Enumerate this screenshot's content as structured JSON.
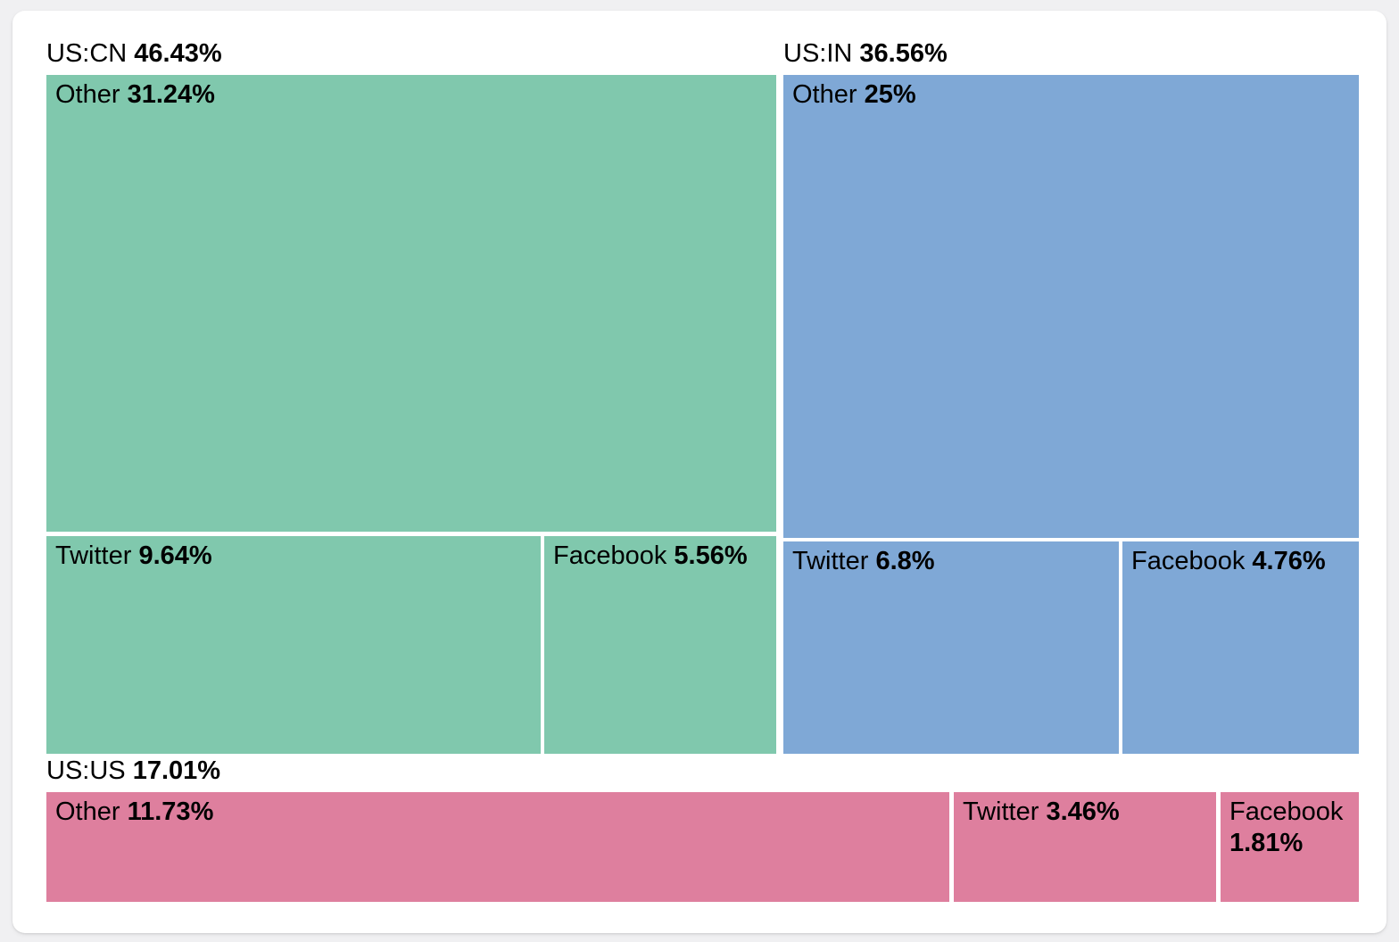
{
  "chart_data": {
    "type": "treemap",
    "unit": "%",
    "legend_position": "none",
    "colors": {
      "us_cn": "#80c8ad",
      "us_in": "#7fa8d6",
      "us_us": "#de7f9e",
      "gap": "#ffffff",
      "text": "#000000",
      "card_background": "#ffffff",
      "page_background": "#f0f0f2"
    },
    "groups": [
      {
        "label": "US:CN",
        "pct": "46.43%",
        "value": 46.43,
        "color": "#80c8ad",
        "children": [
          {
            "label": "Other",
            "pct": "31.24%",
            "value": 31.24
          },
          {
            "label": "Twitter",
            "pct": "9.64%",
            "value": 9.64
          },
          {
            "label": "Facebook",
            "pct": "5.56%",
            "value": 5.56
          }
        ]
      },
      {
        "label": "US:IN",
        "pct": "36.56%",
        "value": 36.56,
        "color": "#7fa8d6",
        "children": [
          {
            "label": "Other",
            "pct": "25%",
            "value": 25
          },
          {
            "label": "Twitter",
            "pct": "6.8%",
            "value": 6.8
          },
          {
            "label": "Facebook",
            "pct": "4.76%",
            "value": 4.76
          }
        ]
      },
      {
        "label": "US:US",
        "pct": "17.01%",
        "value": 17.01,
        "color": "#de7f9e",
        "children": [
          {
            "label": "Other",
            "pct": "11.73%",
            "value": 11.73
          },
          {
            "label": "Twitter",
            "pct": "3.46%",
            "value": 3.46
          },
          {
            "label": "Facebook",
            "pct": "1.81%",
            "value": 1.81
          }
        ]
      }
    ]
  }
}
